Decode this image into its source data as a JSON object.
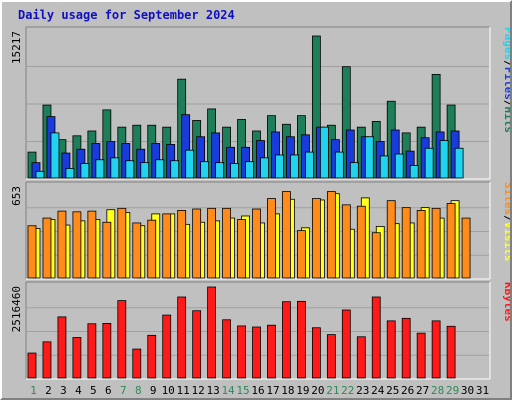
{
  "chart_data": {
    "type": "bar",
    "title": "Daily usage for September 2024",
    "categories": [
      "1",
      "2",
      "3",
      "4",
      "5",
      "6",
      "7",
      "8",
      "9",
      "10",
      "11",
      "12",
      "13",
      "14",
      "15",
      "16",
      "17",
      "18",
      "19",
      "20",
      "21",
      "22",
      "23",
      "24",
      "25",
      "26",
      "27",
      "28",
      "29",
      "30",
      "31"
    ],
    "weekend_days": [
      "1",
      "7",
      "8",
      "14",
      "15",
      "21",
      "22",
      "28",
      "29"
    ],
    "panels": [
      {
        "name": "traffic",
        "ymax_label": "15217",
        "ymax": 15217,
        "legend": [
          "Pages",
          "/",
          "Files",
          "/",
          "Hits"
        ],
        "series": [
          {
            "name": "Hits",
            "color": "#1d7e59",
            "values": [
              2700,
              7600,
              4000,
              4400,
              4900,
              7100,
              5300,
              5500,
              5500,
              5300,
              10300,
              6000,
              7200,
              5300,
              6100,
              4900,
              6500,
              5600,
              6500,
              14800,
              5500,
              11600,
              5300,
              5900,
              8000,
              4700,
              5300,
              10800,
              7600,
              0,
              0
            ]
          },
          {
            "name": "Files",
            "color": "#1a3bdb",
            "values": [
              1600,
              6400,
              2600,
              3000,
              3600,
              3800,
              3600,
              3000,
              3600,
              3500,
              6600,
              4300,
              4700,
              3200,
              3200,
              3900,
              4800,
              4300,
              4500,
              5300,
              4000,
              5000,
              4300,
              3800,
              5000,
              2800,
              4200,
              4800,
              4900,
              0,
              0
            ]
          },
          {
            "name": "Pages",
            "color": "#22d3f0",
            "values": [
              700,
              4700,
              1000,
              1500,
              1900,
              2100,
              1800,
              1600,
              1900,
              1800,
              2900,
              1700,
              1600,
              1500,
              1700,
              2100,
              2400,
              2400,
              2700,
              5300,
              2700,
              1600,
              4300,
              2300,
              2500,
              1300,
              3100,
              3900,
              3100,
              0,
              0
            ]
          }
        ]
      },
      {
        "name": "visits",
        "ymax_label": "653",
        "ymax": 653,
        "legend": [
          "Sites",
          "/",
          "Visits"
        ],
        "series": [
          {
            "name": "Visits",
            "color": "#ffff20",
            "values": [
              355,
              420,
              380,
              410,
              420,
              490,
              470,
              375,
              460,
              460,
              385,
              400,
              410,
              430,
              445,
              395,
              460,
              565,
              360,
              560,
              605,
              350,
              575,
              370,
              390,
              395,
              505,
              430,
              555,
              0,
              0
            ]
          },
          {
            "name": "Sites",
            "color": "#ff8c1a",
            "values": [
              375,
              430,
              480,
              475,
              480,
              400,
              500,
              395,
              415,
              460,
              485,
              495,
              500,
              500,
              420,
              495,
              570,
              620,
              340,
              570,
              620,
              525,
              515,
              325,
              555,
              505,
              485,
              500,
              535,
              430,
              0
            ]
          }
        ]
      },
      {
        "name": "kbytes",
        "ymax_label": "2516460",
        "ymax": 2516460,
        "legend": [
          "KBytes"
        ],
        "series": [
          {
            "name": "KBytes",
            "color": "#ff1a1a",
            "values": [
              690000,
              1000000,
              1690000,
              1120000,
              1500000,
              1510000,
              2140000,
              800000,
              1180000,
              1740000,
              2240000,
              1860000,
              2516460,
              1610000,
              1440000,
              1410000,
              1460000,
              2110000,
              2120000,
              1390000,
              1200000,
              1880000,
              1140000,
              2240000,
              1580000,
              1650000,
              1240000,
              1580000,
              1430000,
              0,
              0
            ]
          }
        ]
      }
    ]
  }
}
